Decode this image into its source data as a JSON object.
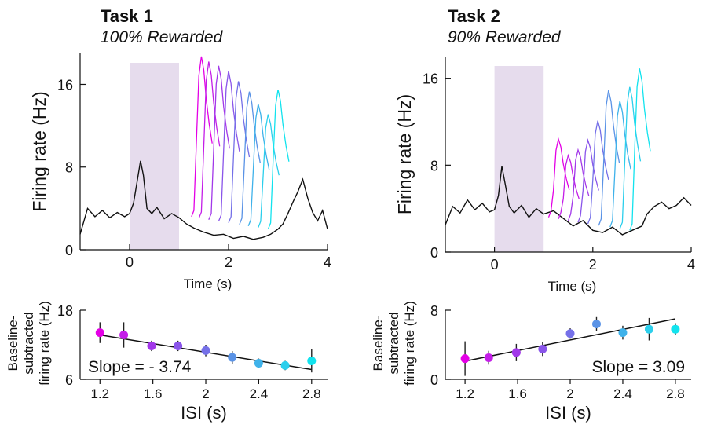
{
  "panels": [
    {
      "title": "Task 1",
      "subtitle": "100% Rewarded"
    },
    {
      "title": "Task 2",
      "subtitle": "90% Rewarded"
    }
  ],
  "chart_data": [
    {
      "type": "line",
      "panel": "Task 1",
      "xlabel": "Time (s)",
      "ylabel": "Firing rate (Hz)",
      "xlim": [
        -1,
        4
      ],
      "ylim": [
        0,
        19
      ],
      "xticks": [
        0,
        2,
        4
      ],
      "yticks": [
        0,
        8,
        16
      ],
      "shaded_interval": [
        0,
        1
      ],
      "shade_color": "#e6dced",
      "baseline": {
        "x": [
          -1,
          -0.85,
          -0.7,
          -0.55,
          -0.4,
          -0.25,
          -0.1,
          0,
          0.08,
          0.15,
          0.22,
          0.28,
          0.35,
          0.45,
          0.55,
          0.7,
          0.85,
          1.0,
          1.15,
          1.3,
          1.5,
          1.7,
          1.9,
          2.1,
          2.3,
          2.5,
          2.7,
          2.85,
          3.0,
          3.1,
          3.2,
          3.3,
          3.4,
          3.5,
          3.6,
          3.7,
          3.8,
          3.9,
          4.0
        ],
        "y": [
          1.5,
          4.0,
          3.2,
          3.8,
          3.1,
          3.6,
          3.2,
          3.5,
          4.5,
          6.5,
          8.6,
          7.2,
          4.0,
          3.5,
          4.1,
          3.0,
          3.5,
          3.1,
          2.5,
          2.1,
          1.7,
          1.4,
          1.5,
          1.1,
          1.3,
          1.0,
          1.2,
          1.5,
          2.0,
          2.5,
          3.5,
          4.6,
          5.6,
          6.8,
          5.0,
          3.6,
          2.8,
          3.8,
          2.0
        ]
      },
      "series": [
        {
          "peak_time": 1.45,
          "peak": 18.7,
          "color": "#e400e6"
        },
        {
          "peak_time": 1.6,
          "peak": 18.2,
          "color": "#c41ee8"
        },
        {
          "peak_time": 1.8,
          "peak": 17.8,
          "color": "#a238e9"
        },
        {
          "peak_time": 2.0,
          "peak": 17.3,
          "color": "#8a55ea"
        },
        {
          "peak_time": 2.2,
          "peak": 16.3,
          "color": "#7570e8"
        },
        {
          "peak_time": 2.42,
          "peak": 15.3,
          "color": "#5a93e6"
        },
        {
          "peak_time": 2.6,
          "peak": 14.1,
          "color": "#3fb2ea"
        },
        {
          "peak_time": 2.8,
          "peak": 13.1,
          "color": "#2ccfec"
        },
        {
          "peak_time": 3.0,
          "peak": 15.5,
          "color": "#12e3ee"
        }
      ]
    },
    {
      "type": "line",
      "panel": "Task 2",
      "xlabel": "Time (s)",
      "ylabel": "Firing rate (Hz)",
      "xlim": [
        -1,
        4
      ],
      "ylim": [
        0,
        18
      ],
      "xticks": [
        0,
        2,
        4
      ],
      "yticks": [
        0,
        8,
        16
      ],
      "shaded_interval": [
        0,
        1
      ],
      "shade_color": "#e6dced",
      "baseline": {
        "x": [
          -1,
          -0.85,
          -0.7,
          -0.55,
          -0.4,
          -0.25,
          -0.1,
          0,
          0.08,
          0.15,
          0.22,
          0.3,
          0.4,
          0.55,
          0.7,
          0.85,
          1.0,
          1.2,
          1.4,
          1.6,
          1.8,
          2.0,
          2.2,
          2.4,
          2.6,
          2.8,
          3.0,
          3.1,
          3.25,
          3.4,
          3.55,
          3.7,
          3.85,
          4.0
        ],
        "y": [
          2.5,
          4.2,
          3.6,
          4.8,
          3.9,
          4.5,
          3.7,
          3.9,
          5.2,
          7.9,
          6.2,
          4.2,
          3.6,
          4.3,
          3.2,
          4.0,
          3.5,
          3.8,
          3.1,
          2.4,
          2.9,
          2.0,
          1.8,
          2.3,
          1.6,
          2.0,
          2.4,
          3.5,
          4.2,
          4.6,
          4.0,
          4.3,
          5.0,
          4.3
        ]
      },
      "series": [
        {
          "peak_time": 1.3,
          "peak": 10.4,
          "color": "#e400e6"
        },
        {
          "peak_time": 1.5,
          "peak": 8.9,
          "color": "#c41ee8"
        },
        {
          "peak_time": 1.7,
          "peak": 9.4,
          "color": "#a238e9"
        },
        {
          "peak_time": 1.9,
          "peak": 10.3,
          "color": "#8a55ea"
        },
        {
          "peak_time": 2.1,
          "peak": 12.1,
          "color": "#7570e8"
        },
        {
          "peak_time": 2.32,
          "peak": 14.9,
          "color": "#5a93e6"
        },
        {
          "peak_time": 2.55,
          "peak": 13.9,
          "color": "#3fb2ea"
        },
        {
          "peak_time": 2.75,
          "peak": 15.2,
          "color": "#2ccfec"
        },
        {
          "peak_time": 2.95,
          "peak": 16.9,
          "color": "#12e3ee"
        }
      ]
    },
    {
      "type": "scatter",
      "panel": "Task 1",
      "xlabel": "ISI (s)",
      "ylabel": [
        "Baseline-",
        "subtracted",
        "firing rate (Hz)"
      ],
      "xlim": [
        1.05,
        2.92
      ],
      "ylim": [
        6,
        18
      ],
      "xticks": [
        1.2,
        1.6,
        2,
        2.4,
        2.8
      ],
      "xticklabels": [
        "1.2",
        "1.6",
        "2",
        "2.4",
        "2.8"
      ],
      "yticks": [
        6,
        18
      ],
      "x": [
        1.2,
        1.38,
        1.59,
        1.79,
        2.0,
        2.2,
        2.4,
        2.6,
        2.8
      ],
      "values": [
        14.1,
        13.7,
        11.8,
        11.8,
        11.0,
        9.8,
        8.8,
        8.4,
        9.2
      ],
      "err": [
        1.8,
        2.2,
        0.9,
        0.9,
        1.0,
        1.1,
        0.8,
        0.8,
        2.0
      ],
      "colors": [
        "#e400e6",
        "#c41ee8",
        "#a238e9",
        "#8a55ea",
        "#7570e8",
        "#5a93e6",
        "#3fb2ea",
        "#2ccfec",
        "#12e3ee"
      ],
      "fit": {
        "x": [
          1.2,
          2.8
        ],
        "y": [
          13.7,
          7.7
        ]
      },
      "annotation": "Slope = - 3.74"
    },
    {
      "type": "scatter",
      "panel": "Task 2",
      "xlabel": "ISI (s)",
      "ylabel": [
        "Baseline-",
        "subtracted",
        "firing rate (Hz)"
      ],
      "xlim": [
        1.05,
        2.92
      ],
      "ylim": [
        0,
        8
      ],
      "xticks": [
        1.2,
        1.6,
        2,
        2.4,
        2.8
      ],
      "xticklabels": [
        "1.2",
        "1.6",
        "2",
        "2.4",
        "2.8"
      ],
      "yticks": [
        0,
        8
      ],
      "x": [
        1.2,
        1.38,
        1.59,
        1.79,
        2.0,
        2.2,
        2.4,
        2.6,
        2.8
      ],
      "values": [
        2.4,
        2.5,
        3.1,
        3.5,
        5.3,
        6.4,
        5.4,
        5.8,
        5.8
      ],
      "err": [
        2.0,
        0.8,
        1.0,
        0.8,
        0.6,
        0.8,
        0.8,
        1.3,
        0.7
      ],
      "colors": [
        "#e400e6",
        "#c41ee8",
        "#a238e9",
        "#8a55ea",
        "#7570e8",
        "#5a93e6",
        "#3fb2ea",
        "#2ccfec",
        "#12e3ee"
      ],
      "fit": {
        "x": [
          1.2,
          2.8
        ],
        "y": [
          2.1,
          7.0
        ]
      },
      "annotation": "Slope = 3.09"
    }
  ]
}
